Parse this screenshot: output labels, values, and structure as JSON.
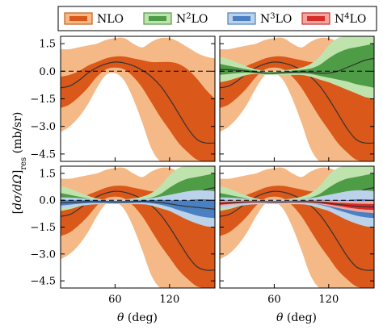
{
  "chart_data": {
    "type": "area",
    "layout": "2x2 grid, shared x and y axes",
    "xlabel": "θ (deg)",
    "ylabel": "[dσ/dΩ]res (mb/sr)",
    "xlim": [
      0,
      170
    ],
    "ylim": [
      -4.9,
      1.9
    ],
    "x_ticks": [
      60,
      120
    ],
    "x_tick_labels": [
      "60",
      "120"
    ],
    "y_ticks": [
      1.5,
      0.0,
      -1.5,
      -3.0,
      -4.5
    ],
    "y_tick_labels": [
      "1.5",
      "0.0",
      "−1.5",
      "−3.0",
      "−4.5"
    ],
    "reference_line": {
      "y": 0.0,
      "style": "dashed"
    },
    "legend": {
      "placement": "top",
      "entries": [
        {
          "key": "nlo",
          "label": "NLO",
          "base": "N",
          "sup": "",
          "suffix": "LO"
        },
        {
          "key": "n2lo",
          "label": "N²LO",
          "base": "N",
          "sup": "2",
          "suffix": "LO"
        },
        {
          "key": "n3lo",
          "label": "N³LO",
          "base": "N",
          "sup": "3",
          "suffix": "LO"
        },
        {
          "key": "n4lo",
          "label": "N⁴LO",
          "base": "N",
          "sup": "4",
          "suffix": "LO"
        }
      ]
    },
    "colors": {
      "nlo": {
        "outer": "#f4b986",
        "inner": "#d9581a",
        "line": "#333333",
        "edge": "#c0601f"
      },
      "n2lo": {
        "outer": "#bfe3ad",
        "inner": "#4f9c46",
        "line": "#333333",
        "edge": "#4f9c46"
      },
      "n3lo": {
        "outer": "#bcd2ea",
        "inner": "#4a7fc2",
        "line": "#333333",
        "edge": "#4a7fc2"
      },
      "n4lo": {
        "outer": "#f2a6a0",
        "inner": "#d62d27",
        "line": "#333333",
        "edge": "#c53030"
      }
    },
    "x": [
      0,
      10,
      20,
      30,
      40,
      50,
      60,
      70,
      80,
      90,
      100,
      110,
      120,
      130,
      140,
      150,
      160,
      170
    ],
    "series": {
      "nlo": {
        "central": [
          -0.9,
          -0.8,
          -0.5,
          -0.1,
          0.2,
          0.4,
          0.5,
          0.45,
          0.3,
          0.05,
          -0.3,
          -0.8,
          -1.5,
          -2.3,
          -3.1,
          -3.7,
          -3.9,
          -3.9
        ],
        "inner_lo": [
          -2.0,
          -1.8,
          -1.4,
          -0.9,
          -0.3,
          0.1,
          0.2,
          0.1,
          -0.3,
          -0.9,
          -1.7,
          -2.5,
          -3.2,
          -3.9,
          -4.4,
          -4.8,
          -4.9,
          -4.9
        ],
        "inner_hi": [
          -0.3,
          -0.2,
          0.0,
          0.3,
          0.5,
          0.7,
          0.8,
          0.8,
          0.7,
          0.6,
          0.5,
          0.5,
          0.5,
          0.4,
          0.1,
          -0.4,
          -1.0,
          -1.5
        ],
        "outer_lo": [
          -3.3,
          -3.0,
          -2.5,
          -1.8,
          -0.9,
          -0.2,
          -0.1,
          -0.5,
          -1.5,
          -2.8,
          -4.2,
          -4.9,
          -4.9,
          -4.9,
          -4.9,
          -4.9,
          -4.9,
          -4.9
        ],
        "outer_hi": [
          1.2,
          1.2,
          1.3,
          1.4,
          1.5,
          1.7,
          1.8,
          1.8,
          1.5,
          1.3,
          1.6,
          1.8,
          1.8,
          1.6,
          1.3,
          1.0,
          0.8,
          0.7
        ]
      },
      "n2lo": {
        "central": [
          0.1,
          0.08,
          0.05,
          0.0,
          -0.05,
          -0.1,
          -0.1,
          -0.08,
          -0.05,
          -0.03,
          -0.05,
          -0.1,
          -0.1,
          0.0,
          0.2,
          0.4,
          0.6,
          0.7
        ],
        "inner_lo": [
          -0.2,
          -0.15,
          -0.1,
          -0.08,
          -0.12,
          -0.15,
          -0.15,
          -0.13,
          -0.12,
          -0.12,
          -0.15,
          -0.25,
          -0.35,
          -0.45,
          -0.55,
          -0.7,
          -0.8,
          -0.9
        ],
        "inner_hi": [
          0.4,
          0.3,
          0.2,
          0.1,
          0.02,
          -0.05,
          -0.05,
          -0.02,
          0.03,
          0.08,
          0.15,
          0.35,
          0.7,
          1.0,
          1.2,
          1.3,
          1.4,
          1.5
        ],
        "outer_lo": [
          -0.6,
          -0.5,
          -0.35,
          -0.2,
          -0.15,
          -0.2,
          -0.2,
          -0.2,
          -0.2,
          -0.2,
          -0.3,
          -0.45,
          -0.6,
          -0.8,
          -1.0,
          -1.2,
          -1.4,
          -1.5
        ],
        "outer_hi": [
          0.8,
          0.65,
          0.45,
          0.25,
          0.1,
          0.02,
          0.02,
          0.05,
          0.1,
          0.2,
          0.4,
          0.8,
          1.4,
          1.8,
          1.9,
          1.9,
          1.9,
          1.9
        ]
      },
      "n3lo": {
        "central": [
          -0.15,
          -0.12,
          -0.1,
          -0.08,
          -0.08,
          -0.09,
          -0.1,
          -0.1,
          -0.08,
          -0.06,
          -0.08,
          -0.12,
          -0.2,
          -0.28,
          -0.35,
          -0.4,
          -0.45,
          -0.5
        ],
        "inner_lo": [
          -0.3,
          -0.25,
          -0.2,
          -0.16,
          -0.15,
          -0.15,
          -0.16,
          -0.16,
          -0.15,
          -0.14,
          -0.17,
          -0.25,
          -0.38,
          -0.55,
          -0.7,
          -0.85,
          -0.95,
          -1.0
        ],
        "inner_hi": [
          0.0,
          0.0,
          0.0,
          0.0,
          -0.01,
          -0.03,
          -0.04,
          -0.04,
          -0.02,
          0.0,
          0.0,
          0.02,
          0.0,
          0.0,
          0.0,
          0.05,
          0.05,
          0.0
        ],
        "outer_lo": [
          -0.45,
          -0.4,
          -0.33,
          -0.26,
          -0.23,
          -0.22,
          -0.22,
          -0.22,
          -0.22,
          -0.23,
          -0.28,
          -0.4,
          -0.6,
          -0.85,
          -1.1,
          -1.3,
          -1.45,
          -1.5
        ],
        "outer_hi": [
          0.15,
          0.15,
          0.12,
          0.08,
          0.06,
          0.04,
          0.02,
          0.02,
          0.04,
          0.08,
          0.12,
          0.2,
          0.3,
          0.4,
          0.5,
          0.55,
          0.55,
          0.5
        ]
      },
      "n4lo": {
        "central": [
          -0.18,
          -0.15,
          -0.12,
          -0.1,
          -0.09,
          -0.09,
          -0.1,
          -0.1,
          -0.09,
          -0.08,
          -0.09,
          -0.12,
          -0.17,
          -0.23,
          -0.28,
          -0.33,
          -0.36,
          -0.38
        ],
        "inner_lo": [
          -0.25,
          -0.21,
          -0.17,
          -0.14,
          -0.12,
          -0.12,
          -0.13,
          -0.13,
          -0.12,
          -0.11,
          -0.13,
          -0.17,
          -0.24,
          -0.32,
          -0.4,
          -0.47,
          -0.52,
          -0.55
        ],
        "inner_hi": [
          -0.11,
          -0.09,
          -0.07,
          -0.06,
          -0.06,
          -0.06,
          -0.07,
          -0.07,
          -0.06,
          -0.05,
          -0.05,
          -0.07,
          -0.1,
          -0.14,
          -0.16,
          -0.19,
          -0.2,
          -0.21
        ],
        "outer_lo": [
          -0.33,
          -0.28,
          -0.23,
          -0.19,
          -0.16,
          -0.15,
          -0.16,
          -0.16,
          -0.15,
          -0.14,
          -0.17,
          -0.23,
          -0.32,
          -0.43,
          -0.53,
          -0.62,
          -0.68,
          -0.72
        ],
        "outer_hi": [
          -0.03,
          -0.02,
          0.0,
          0.0,
          -0.02,
          -0.03,
          -0.04,
          -0.04,
          -0.03,
          -0.02,
          -0.01,
          -0.01,
          -0.02,
          -0.03,
          -0.03,
          -0.04,
          -0.04,
          -0.04
        ]
      }
    },
    "panels": [
      {
        "position": "top-left",
        "orders": [
          "nlo"
        ]
      },
      {
        "position": "top-right",
        "orders": [
          "nlo",
          "n2lo"
        ]
      },
      {
        "position": "bottom-left",
        "orders": [
          "nlo",
          "n2lo",
          "n3lo"
        ]
      },
      {
        "position": "bottom-right",
        "orders": [
          "nlo",
          "n2lo",
          "n3lo",
          "n4lo"
        ]
      }
    ]
  }
}
